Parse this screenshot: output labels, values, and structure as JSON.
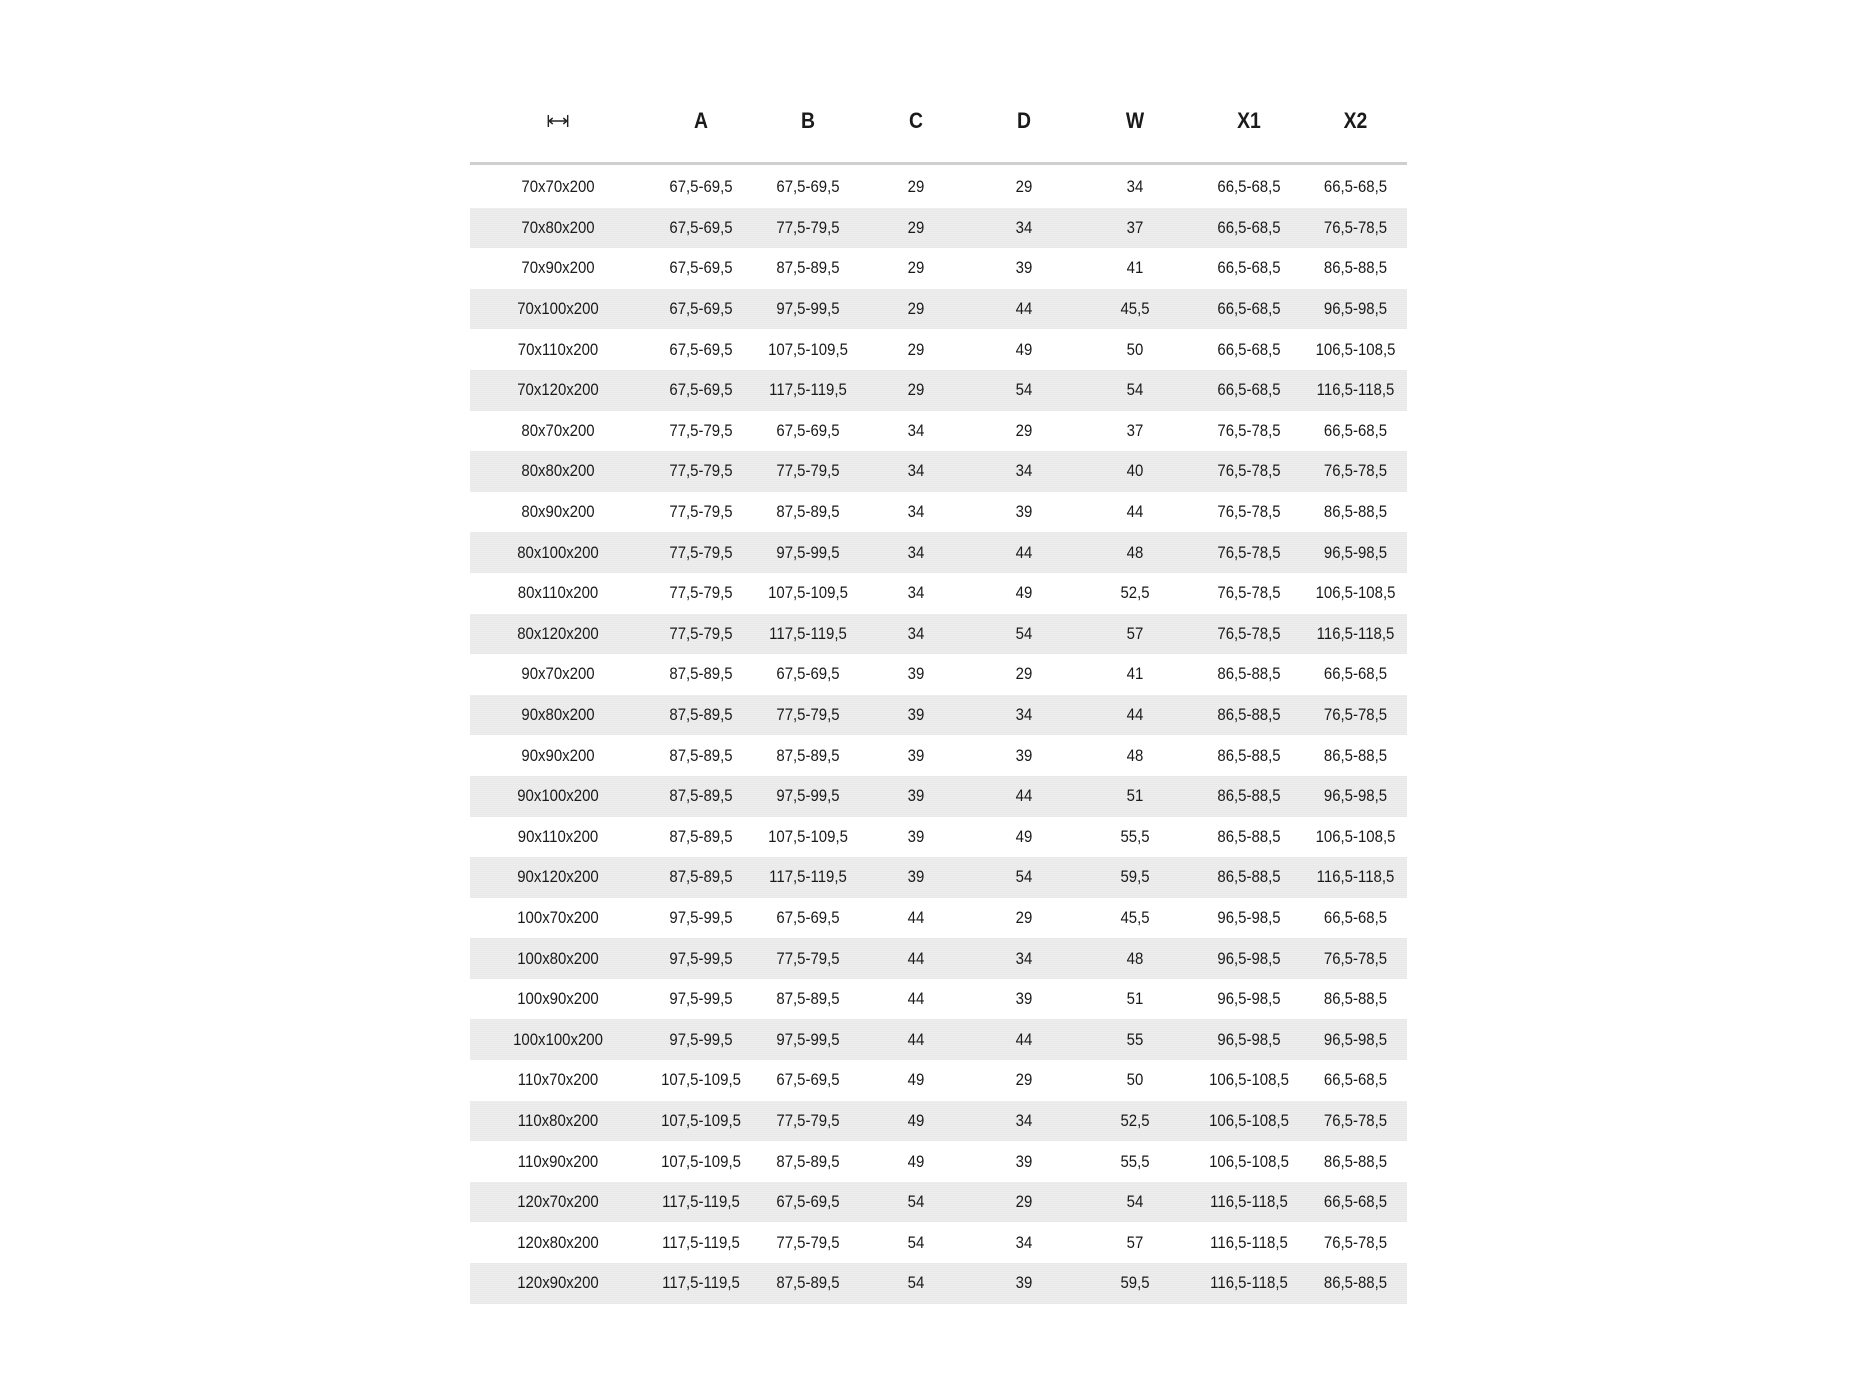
{
  "table": {
    "header_icon": "width-arrows-icon",
    "columns": [
      "A",
      "B",
      "C",
      "D",
      "W",
      "X1",
      "X2"
    ],
    "rows": [
      [
        "70x70x200",
        "67,5-69,5",
        "67,5-69,5",
        "29",
        "29",
        "34",
        "66,5-68,5",
        "66,5-68,5"
      ],
      [
        "70x80x200",
        "67,5-69,5",
        "77,5-79,5",
        "29",
        "34",
        "37",
        "66,5-68,5",
        "76,5-78,5"
      ],
      [
        "70x90x200",
        "67,5-69,5",
        "87,5-89,5",
        "29",
        "39",
        "41",
        "66,5-68,5",
        "86,5-88,5"
      ],
      [
        "70x100x200",
        "67,5-69,5",
        "97,5-99,5",
        "29",
        "44",
        "45,5",
        "66,5-68,5",
        "96,5-98,5"
      ],
      [
        "70x110x200",
        "67,5-69,5",
        "107,5-109,5",
        "29",
        "49",
        "50",
        "66,5-68,5",
        "106,5-108,5"
      ],
      [
        "70x120x200",
        "67,5-69,5",
        "117,5-119,5",
        "29",
        "54",
        "54",
        "66,5-68,5",
        "116,5-118,5"
      ],
      [
        "80x70x200",
        "77,5-79,5",
        "67,5-69,5",
        "34",
        "29",
        "37",
        "76,5-78,5",
        "66,5-68,5"
      ],
      [
        "80x80x200",
        "77,5-79,5",
        "77,5-79,5",
        "34",
        "34",
        "40",
        "76,5-78,5",
        "76,5-78,5"
      ],
      [
        "80x90x200",
        "77,5-79,5",
        "87,5-89,5",
        "34",
        "39",
        "44",
        "76,5-78,5",
        "86,5-88,5"
      ],
      [
        "80x100x200",
        "77,5-79,5",
        "97,5-99,5",
        "34",
        "44",
        "48",
        "76,5-78,5",
        "96,5-98,5"
      ],
      [
        "80x110x200",
        "77,5-79,5",
        "107,5-109,5",
        "34",
        "49",
        "52,5",
        "76,5-78,5",
        "106,5-108,5"
      ],
      [
        "80x120x200",
        "77,5-79,5",
        "117,5-119,5",
        "34",
        "54",
        "57",
        "76,5-78,5",
        "116,5-118,5"
      ],
      [
        "90x70x200",
        "87,5-89,5",
        "67,5-69,5",
        "39",
        "29",
        "41",
        "86,5-88,5",
        "66,5-68,5"
      ],
      [
        "90x80x200",
        "87,5-89,5",
        "77,5-79,5",
        "39",
        "34",
        "44",
        "86,5-88,5",
        "76,5-78,5"
      ],
      [
        "90x90x200",
        "87,5-89,5",
        "87,5-89,5",
        "39",
        "39",
        "48",
        "86,5-88,5",
        "86,5-88,5"
      ],
      [
        "90x100x200",
        "87,5-89,5",
        "97,5-99,5",
        "39",
        "44",
        "51",
        "86,5-88,5",
        "96,5-98,5"
      ],
      [
        "90x110x200",
        "87,5-89,5",
        "107,5-109,5",
        "39",
        "49",
        "55,5",
        "86,5-88,5",
        "106,5-108,5"
      ],
      [
        "90x120x200",
        "87,5-89,5",
        "117,5-119,5",
        "39",
        "54",
        "59,5",
        "86,5-88,5",
        "116,5-118,5"
      ],
      [
        "100x70x200",
        "97,5-99,5",
        "67,5-69,5",
        "44",
        "29",
        "45,5",
        "96,5-98,5",
        "66,5-68,5"
      ],
      [
        "100x80x200",
        "97,5-99,5",
        "77,5-79,5",
        "44",
        "34",
        "48",
        "96,5-98,5",
        "76,5-78,5"
      ],
      [
        "100x90x200",
        "97,5-99,5",
        "87,5-89,5",
        "44",
        "39",
        "51",
        "96,5-98,5",
        "86,5-88,5"
      ],
      [
        "100x100x200",
        "97,5-99,5",
        "97,5-99,5",
        "44",
        "44",
        "55",
        "96,5-98,5",
        "96,5-98,5"
      ],
      [
        "110x70x200",
        "107,5-109,5",
        "67,5-69,5",
        "49",
        "29",
        "50",
        "106,5-108,5",
        "66,5-68,5"
      ],
      [
        "110x80x200",
        "107,5-109,5",
        "77,5-79,5",
        "49",
        "34",
        "52,5",
        "106,5-108,5",
        "76,5-78,5"
      ],
      [
        "110x90x200",
        "107,5-109,5",
        "87,5-89,5",
        "49",
        "39",
        "55,5",
        "106,5-108,5",
        "86,5-88,5"
      ],
      [
        "120x70x200",
        "117,5-119,5",
        "67,5-69,5",
        "54",
        "29",
        "54",
        "116,5-118,5",
        "66,5-68,5"
      ],
      [
        "120x80x200",
        "117,5-119,5",
        "77,5-79,5",
        "54",
        "34",
        "57",
        "116,5-118,5",
        "76,5-78,5"
      ],
      [
        "120x90x200",
        "117,5-119,5",
        "87,5-89,5",
        "54",
        "39",
        "59,5",
        "116,5-118,5",
        "86,5-88,5"
      ]
    ]
  }
}
